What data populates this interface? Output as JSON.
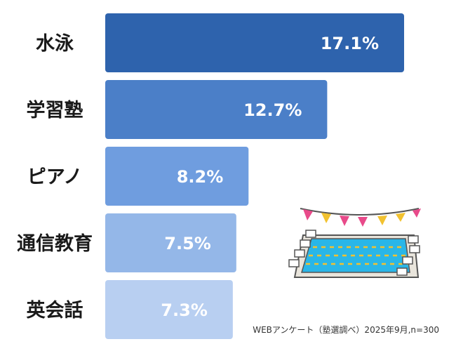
{
  "chart_data": {
    "type": "bar",
    "orientation": "horizontal",
    "categories": [
      "水泳",
      "学習塾",
      "ピアノ",
      "通信教育",
      "英会話"
    ],
    "values": [
      17.1,
      12.7,
      8.2,
      7.5,
      7.3
    ],
    "value_labels": [
      "17.1%",
      "12.7%",
      "8.2%",
      "7.5%",
      "7.3%"
    ],
    "colors": [
      "#2e63ad",
      "#4b7fc8",
      "#6f9ddf",
      "#94b7e8",
      "#b8cff1"
    ],
    "xlim": [
      0,
      17.1
    ],
    "grid": false,
    "legend": "none"
  },
  "source_note": "WEBアンケート（塾選調べ）2025年9月,n=300",
  "illustration": "swimming-pool-with-bunting"
}
